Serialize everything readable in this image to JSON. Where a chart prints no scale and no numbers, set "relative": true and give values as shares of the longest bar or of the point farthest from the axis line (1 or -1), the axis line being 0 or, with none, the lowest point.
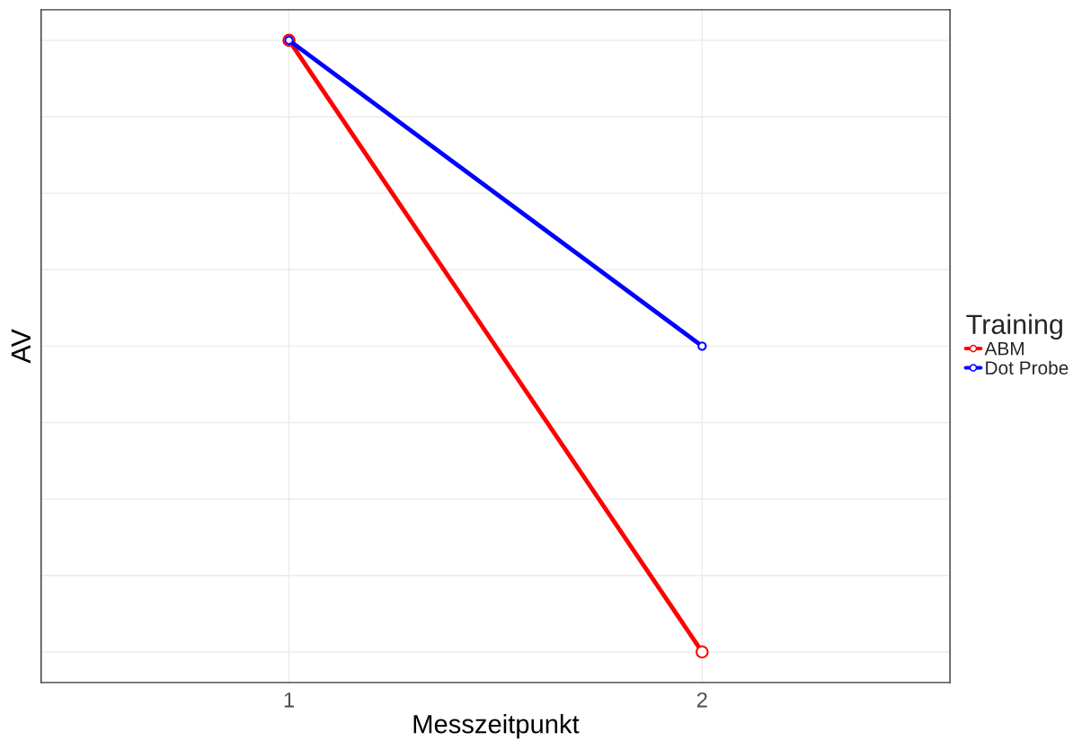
{
  "chart_data": {
    "type": "line",
    "xlabel": "Messzeitpunkt",
    "ylabel": "AV",
    "legend_title": "Training",
    "categories": [
      "1",
      "2"
    ],
    "series": [
      {
        "name": "ABM",
        "color": "#ff0000",
        "values": [
          1,
          0
        ]
      },
      {
        "name": "Dot Probe",
        "color": "#0000ff",
        "values": [
          1,
          0.5
        ]
      }
    ],
    "relative": true,
    "grid": true,
    "legend": "right",
    "marker": "circle",
    "line_style": "solid"
  }
}
